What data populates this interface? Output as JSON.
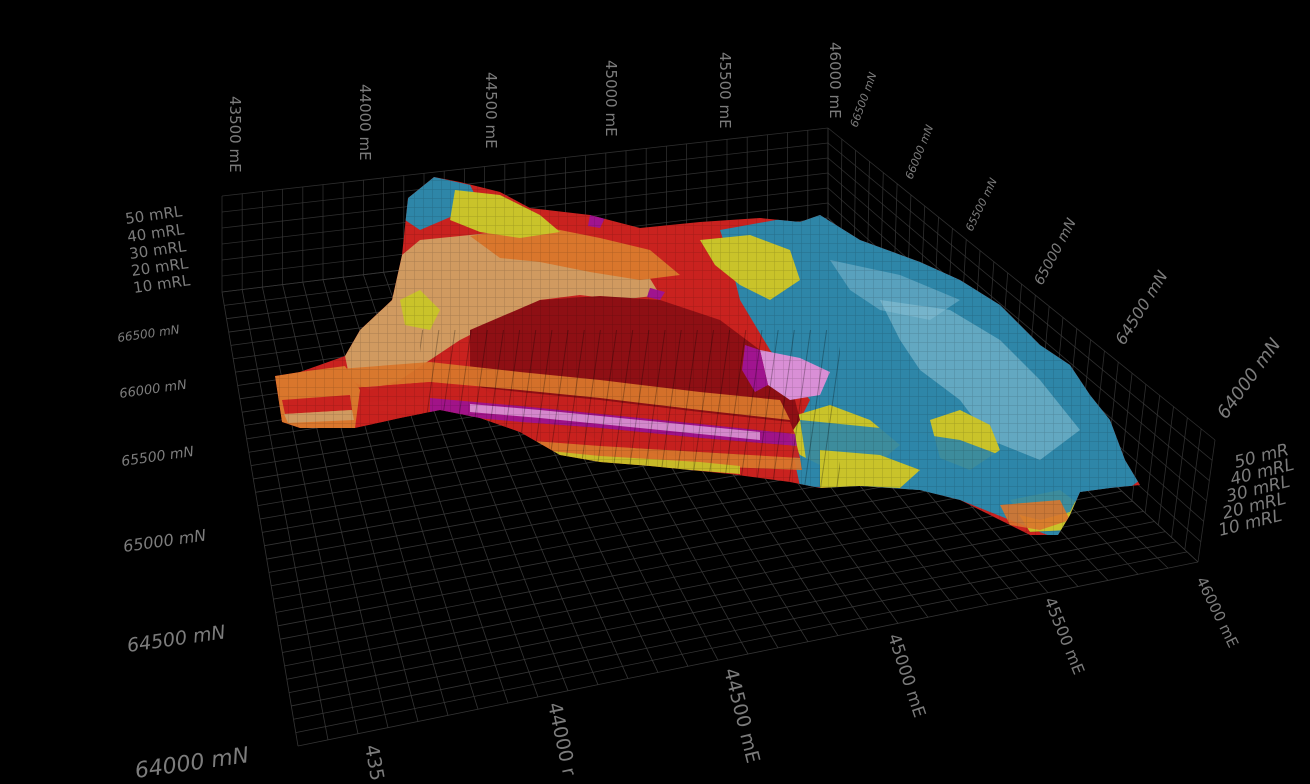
{
  "viewer": {
    "top_easting_labels": [
      "43500 mE",
      "44000 mE",
      "44500 mE",
      "45000 mE",
      "45500 mE",
      "46000 mE"
    ],
    "right_northing_labels": [
      "66500 mN",
      "66000 mN",
      "65500 mN",
      "65000 mN",
      "64500 mN",
      "64000 mN"
    ],
    "left_rl_labels": [
      "50 mRL",
      "40 mRL",
      "30 mRL",
      "20 mRL",
      "10 mRL"
    ],
    "left_northing_labels": [
      "66500 mN",
      "66000 mN",
      "65500 mN",
      "65000 mN",
      "64500 mN",
      "64000 mN"
    ],
    "bottom_easting_labels": [
      "435",
      "44000 r",
      "44500 mE",
      "45000 mE",
      "45500 mE",
      "46000 mE"
    ],
    "right_rl_labels": [
      "50 mR",
      "40 mRL",
      "30 mRL",
      "20 mRL",
      "10 mRL"
    ]
  },
  "colors": {
    "background": "#000000",
    "grid": "#3a3a3a",
    "label": "#7c7c7c",
    "blue": "#2e86a8",
    "light_blue": "#8fc4d6",
    "yellow_green": "#c9c32a",
    "tan": "#d09a60",
    "orange": "#d9762c",
    "red": "#c9221f",
    "dark_red": "#8e0f14",
    "magenta": "#a0148f",
    "pink": "#d98fd6"
  }
}
